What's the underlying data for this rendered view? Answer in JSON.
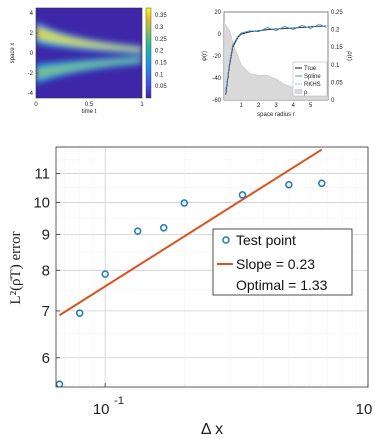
{
  "chart_data": [
    {
      "type": "heatmap",
      "title": "",
      "xlabel": "time t",
      "ylabel": "space x",
      "xlim": [
        0,
        1
      ],
      "ylim": [
        -4.5,
        4.5
      ],
      "xticks": [
        "0",
        "0.5",
        "1"
      ],
      "yticks": [
        "4",
        "2",
        "0",
        "-2",
        "-4"
      ],
      "colorbar_ticks": [
        "0.35",
        "0.3",
        "0.25",
        "0.2",
        "0.15",
        "0.1",
        "0.05"
      ],
      "colorbar_range": [
        0,
        0.38
      ],
      "colormap": "parula",
      "bands": [
        {
          "start_center": 2.0,
          "end_center": 0.6
        },
        {
          "start_center": -2.0,
          "end_center": -0.6
        }
      ]
    },
    {
      "type": "line",
      "xlabel": "space radius r",
      "ylabel_left": "φ(r)",
      "ylabel_right": "ρ(r)",
      "xlim": [
        0,
        6
      ],
      "ylim_left": [
        -60,
        20
      ],
      "ylim_right": [
        0,
        0.25
      ],
      "xticks": [
        "1",
        "2",
        "3",
        "4",
        "5"
      ],
      "yticks_left": [
        "20",
        "0",
        "-20",
        "-40",
        "-60"
      ],
      "yticks_right": [
        "0.25",
        "0.2",
        "0.15",
        "0.1",
        "0.05",
        "0"
      ],
      "legend": [
        "True",
        "Spline",
        "RKHS",
        "ρ"
      ],
      "series": [
        {
          "name": "True",
          "x": [
            0.1,
            0.3,
            0.5,
            0.8,
            1.0,
            1.5,
            2.0,
            2.5,
            3.0,
            3.5,
            4.0,
            4.5,
            5.0,
            5.5,
            5.9
          ],
          "y": [
            -55,
            -30,
            -12,
            -3,
            0,
            2,
            3,
            4,
            4.5,
            5,
            5.5,
            6,
            6.5,
            7,
            7.2
          ]
        },
        {
          "name": "Spline",
          "x": [
            0.1,
            0.3,
            0.5,
            0.8,
            1.0,
            1.5,
            2.0,
            2.5,
            3.0,
            3.5,
            4.0,
            4.5,
            5.0,
            5.5,
            5.9
          ],
          "y": [
            -52,
            -28,
            -10,
            -2,
            1,
            3,
            2,
            6,
            3,
            7,
            4,
            8,
            5,
            9,
            6
          ]
        },
        {
          "name": "RKHS",
          "x": [
            0.1,
            0.3,
            0.5,
            0.8,
            1.0,
            1.5,
            2.0,
            2.5,
            3.0,
            3.5,
            4.0,
            4.5,
            5.0,
            5.5,
            5.9
          ],
          "y": [
            -54,
            -29,
            -11,
            -2.5,
            0.5,
            2.5,
            3,
            4.5,
            4.5,
            5.5,
            5.5,
            6.5,
            6.5,
            7.5,
            7
          ]
        },
        {
          "name": "ρ",
          "x": [
            0,
            0.3,
            0.6,
            1.0,
            1.5,
            2.0,
            2.5,
            3.0,
            3.5,
            4.0,
            4.5,
            5.0,
            5.5,
            6.0
          ],
          "y": [
            0.22,
            0.2,
            0.15,
            0.1,
            0.075,
            0.07,
            0.07,
            0.06,
            0.045,
            0.035,
            0.03,
            0.025,
            0.02,
            0.015
          ]
        }
      ]
    },
    {
      "type": "scatter",
      "xlabel": "Δ x",
      "ylabel": "L²(ρ̄T) error",
      "xscale": "log",
      "yscale": "log",
      "xlim": [
        0.065,
        1.0
      ],
      "ylim": [
        5.45,
        12.0
      ],
      "xticks": [
        "10",
        "10"
      ],
      "xtick_exponents": [
        "-1",
        "0"
      ],
      "yticks": [
        "6",
        "7",
        "8",
        "9",
        "10",
        "11"
      ],
      "grid": true,
      "legend_position": "right-center",
      "legend": [
        "Test point",
        "Slope = 0.23",
        "Optimal = 1.33"
      ],
      "series": [
        {
          "name": "Test point",
          "x": [
            0.067,
            0.08,
            0.1,
            0.133,
            0.167,
            0.2,
            0.333,
            0.5,
            0.667
          ],
          "y": [
            5.5,
            6.95,
            7.9,
            9.1,
            9.2,
            9.98,
            10.25,
            10.6,
            10.65
          ]
        },
        {
          "name": "Slope = 0.23",
          "x": [
            0.067,
            0.667
          ],
          "y": [
            6.9,
            11.9
          ]
        }
      ]
    }
  ]
}
